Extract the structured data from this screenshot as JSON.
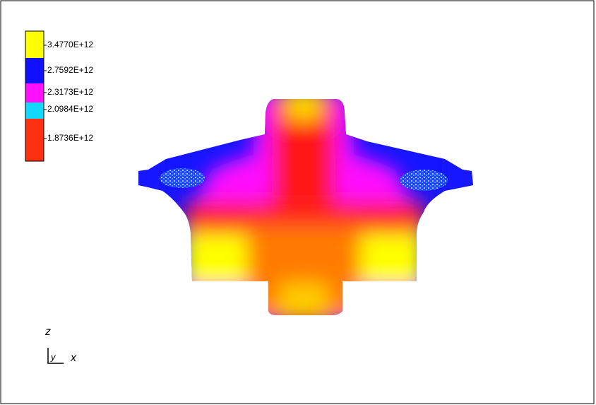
{
  "legend": {
    "entries": [
      {
        "label": "3.4770E+12",
        "color": "#ffff00"
      },
      {
        "label": "2.7592E+12",
        "color": "#1010ff"
      },
      {
        "label": "2.3173E+12",
        "color": "#ff10ff"
      },
      {
        "label": "2.0984E+12",
        "color": "#10d8ff"
      },
      {
        "label": "1.8736E+12",
        "color": "#ff3010"
      }
    ]
  },
  "triad": {
    "z": "z",
    "y": "y",
    "x": "x"
  }
}
